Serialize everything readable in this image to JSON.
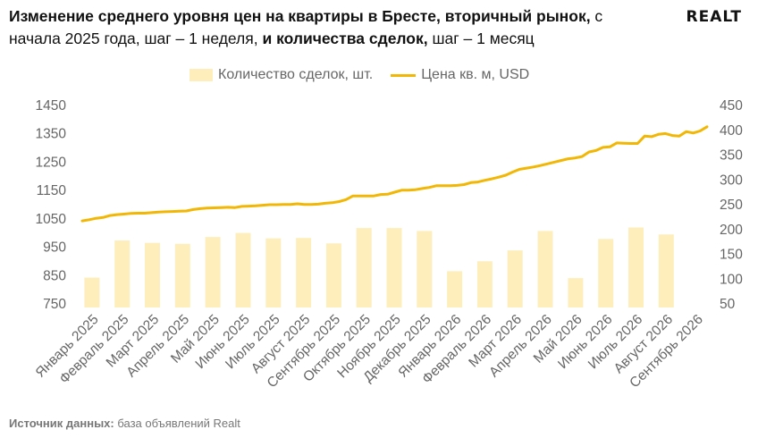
{
  "title": {
    "part1": "Изменение среднего уровня цен на квартиры в Бресте, вторичный рынок,",
    "part2": " с начала 2025 года, шаг – 1 неделя, ",
    "part3": "и количества сделок,",
    "part4": " шаг – 1 месяц"
  },
  "logo": "REALT",
  "legend": {
    "bars": "Количество сделок, шт.",
    "line": "Цена кв. м, USD"
  },
  "source": {
    "label": "Источник данных:",
    "text": " база объявлений Realt"
  },
  "colors": {
    "bar": "#fdeebc",
    "line": "#f2b705"
  },
  "chart_data": {
    "type": "bar+line",
    "categories": [
      "Январь 2025",
      "Февраль 2025",
      "Март 2025",
      "Апрель 2025",
      "Май 2025",
      "Июнь 2025",
      "Июль 2025",
      "Август 2025",
      "Сентябрь 2025",
      "Октябрь 2025",
      "Ноябрь 2025",
      "Декабрь 2025",
      "Январь 2026",
      "Февраль 2026",
      "Март 2026",
      "Апрель 2026",
      "Май 2026",
      "Июнь 2026",
      "Июль 2026",
      "Август 2026",
      "Сентябрь 2026"
    ],
    "left_axis": {
      "ticks": [
        750,
        850,
        950,
        1050,
        1150,
        1250,
        1350,
        1450
      ],
      "ylim": [
        750,
        1450
      ]
    },
    "right_axis": {
      "ticks": [
        50,
        100,
        150,
        200,
        250,
        300,
        350,
        400,
        450
      ],
      "ylim": [
        50,
        450
      ]
    },
    "bars": {
      "name": "Количество сделок, шт.",
      "axis": "right",
      "values": [
        103,
        178,
        173,
        171,
        185,
        193,
        182,
        183,
        172,
        203,
        203,
        197,
        116,
        136,
        158,
        197,
        102,
        181,
        204,
        190
      ]
    },
    "line": {
      "name": "Цена кв. м, USD",
      "axis": "left",
      "values": [
        1043,
        1047,
        1052,
        1055,
        1062,
        1065,
        1067,
        1069,
        1070,
        1070,
        1072,
        1074,
        1075,
        1076,
        1077,
        1078,
        1083,
        1086,
        1088,
        1089,
        1090,
        1091,
        1090,
        1094,
        1095,
        1096,
        1098,
        1100,
        1100,
        1101,
        1101,
        1103,
        1101,
        1101,
        1102,
        1105,
        1107,
        1111,
        1118,
        1131,
        1131,
        1131,
        1131,
        1136,
        1137,
        1144,
        1151,
        1151,
        1153,
        1157,
        1161,
        1167,
        1167,
        1167,
        1168,
        1171,
        1178,
        1180,
        1186,
        1191,
        1197,
        1204,
        1215,
        1225,
        1229,
        1233,
        1238,
        1244,
        1250,
        1256,
        1262,
        1265,
        1270,
        1286,
        1291,
        1302,
        1304,
        1318,
        1317,
        1316,
        1316,
        1342,
        1340,
        1348,
        1351,
        1344,
        1342,
        1358,
        1353,
        1360,
        1375
      ]
    }
  }
}
